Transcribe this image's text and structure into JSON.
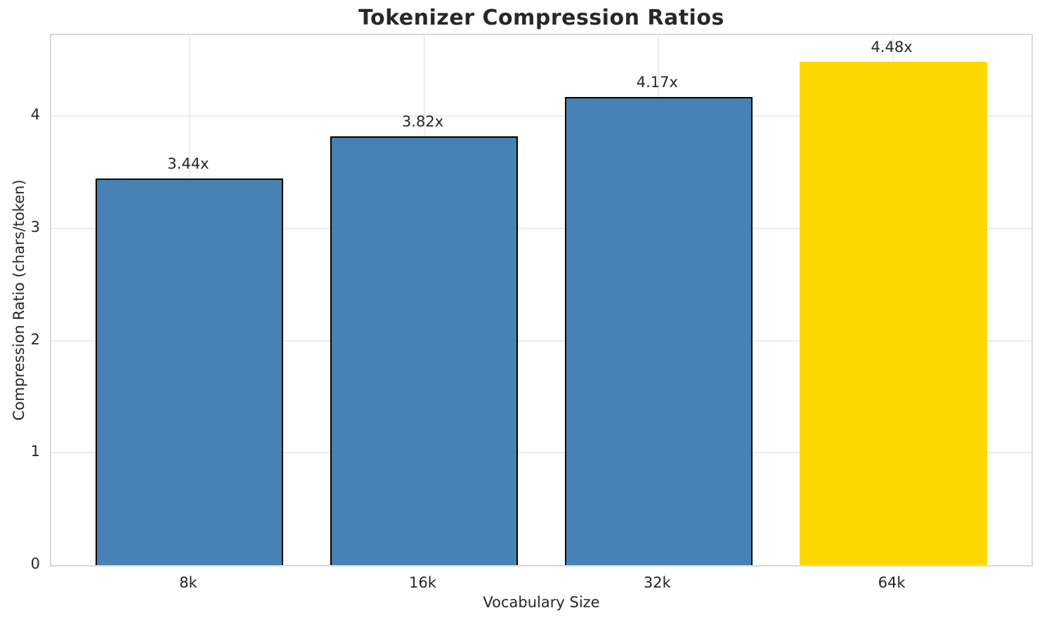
{
  "chart_data": {
    "type": "bar",
    "title": "Tokenizer Compression Ratios",
    "xlabel": "Vocabulary Size",
    "ylabel": "Compression Ratio (chars/token)",
    "categories": [
      "8k",
      "16k",
      "32k",
      "64k"
    ],
    "values": [
      3.44,
      3.82,
      4.17,
      4.48
    ],
    "bar_labels": [
      "3.44x",
      "3.82x",
      "4.17x",
      "4.48x"
    ],
    "yticks": [
      "0",
      "1",
      "2",
      "3",
      "4"
    ],
    "ylim": [
      0,
      4.72
    ],
    "bar_color": "#4682B4",
    "highlight_color": "#FFD700",
    "highlight_index": 3,
    "bar_edge_color": "#000000",
    "grid": true,
    "background_color": "#ffffff"
  }
}
